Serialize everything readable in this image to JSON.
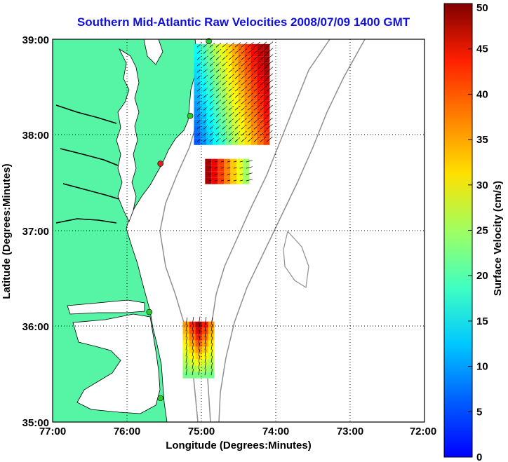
{
  "title": "Southern Mid-Atlantic Raw Velocities 2008/07/09 1400 GMT",
  "map": {
    "xlabel": "Longitude (Degrees:Minutes)",
    "ylabel": "Latitude (Degrees:Minutes)",
    "x_ticks": [
      "77:00",
      "76:00",
      "75:00",
      "74:00",
      "73:00",
      "72:00"
    ],
    "y_ticks": [
      "39:00",
      "38:00",
      "37:00",
      "36:00",
      "35:00"
    ],
    "lon_range": [
      -77,
      -72
    ],
    "lat_range": [
      35,
      39
    ],
    "land_color": "#55f5a5",
    "sea_color": "#ffffff",
    "grid": "dotted"
  },
  "colorbar": {
    "label": "Surface Velocity (cm/s)",
    "ticks": [
      "0",
      "5",
      "10",
      "15",
      "20",
      "25",
      "30",
      "35",
      "40",
      "45",
      "50"
    ],
    "range": [
      0,
      50
    ],
    "colormap": "jet"
  },
  "chart_data": {
    "type": "map",
    "regions": [
      {
        "lon": [
          -75.1,
          -74.1
        ],
        "lat": [
          37.9,
          38.95
        ],
        "velocity_cm_s": [
          10,
          48
        ]
      },
      {
        "lon": [
          -74.95,
          -74.4
        ],
        "lat": [
          37.5,
          37.75
        ],
        "velocity_cm_s": [
          25,
          48
        ]
      },
      {
        "lon": [
          -75.25,
          -74.9
        ],
        "lat": [
          35.5,
          36.05
        ],
        "velocity_cm_s": [
          24,
          48
        ]
      }
    ],
    "stations": [
      {
        "lon": -74.9,
        "lat": 38.98,
        "color": "#2ec82e"
      },
      {
        "lon": -75.15,
        "lat": 38.2,
        "color": "#2ec82e"
      },
      {
        "lon": -75.55,
        "lat": 37.7,
        "color": "#e02020"
      },
      {
        "lon": -75.7,
        "lat": 36.15,
        "color": "#2ec82e"
      },
      {
        "lon": -75.55,
        "lat": 35.25,
        "color": "#2ec82e"
      }
    ]
  }
}
